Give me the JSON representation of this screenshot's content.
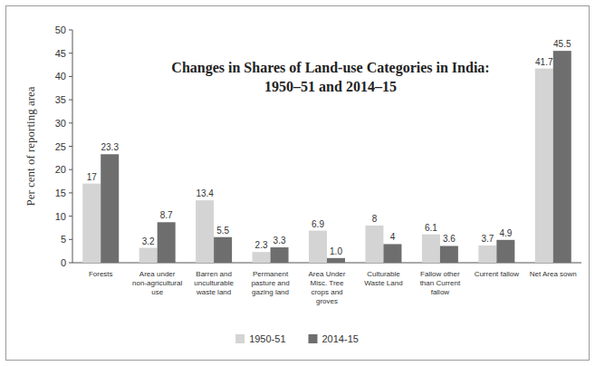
{
  "chart_data": {
    "type": "bar",
    "title": "Changes in Shares of Land-use Categories in India:\n1950–51 and 2014–15",
    "y_label": "Per cent of reporting area",
    "categories": [
      "Forests",
      "Area under non-agricultural use",
      "Barren and unculturable waste land",
      "Permanent pasture and gazing land",
      "Area Under Misc. Tree crops and groves",
      "Culturable Waste Land",
      "Fallow other than Current fallow",
      "Current fallow",
      "Net Area sown"
    ],
    "series": [
      {
        "name": "1950-51",
        "color": "#d4d4d4",
        "values": [
          17,
          3.2,
          13.4,
          2.3,
          6.9,
          8,
          6.1,
          3.7,
          41.7
        ]
      },
      {
        "name": "2014-15",
        "color": "#6e6e6e",
        "values": [
          23.3,
          8.7,
          5.5,
          3.3,
          1.0,
          4,
          3.6,
          4.9,
          45.5
        ],
        "value_labels": [
          "23.3",
          "8.7",
          "5.5",
          "3.3",
          "1.0",
          "4",
          "3.6",
          "4.9",
          "45.5"
        ]
      }
    ],
    "ylim": [
      0,
      50
    ],
    "yticks": [
      0,
      5,
      10,
      15,
      20,
      25,
      30,
      35,
      40,
      45,
      50
    ],
    "grid": false,
    "legend": "bottom",
    "data_labels": true
  }
}
